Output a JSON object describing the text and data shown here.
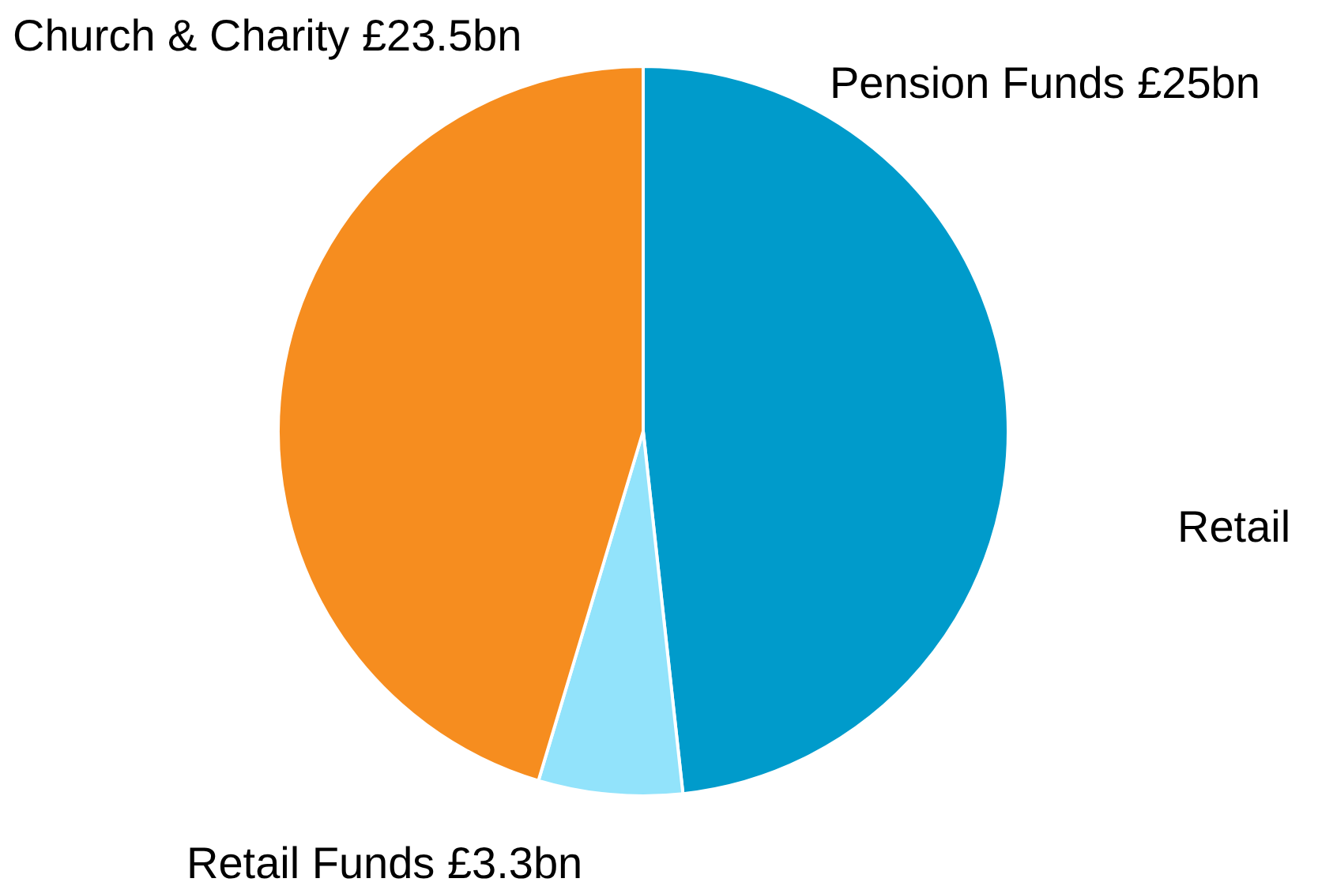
{
  "chart_data": {
    "type": "pie",
    "categories": [
      "Pension Funds",
      "Retail Funds",
      "Church & Charity"
    ],
    "values": [
      25,
      3.3,
      23.5
    ],
    "value_labels": [
      "£25bn",
      "£3.3bn",
      "£23.5bn"
    ],
    "colors": [
      "#009bcb",
      "#92e3fb",
      "#f68d1f"
    ],
    "annotations": [
      "Retail"
    ],
    "legend": false
  }
}
